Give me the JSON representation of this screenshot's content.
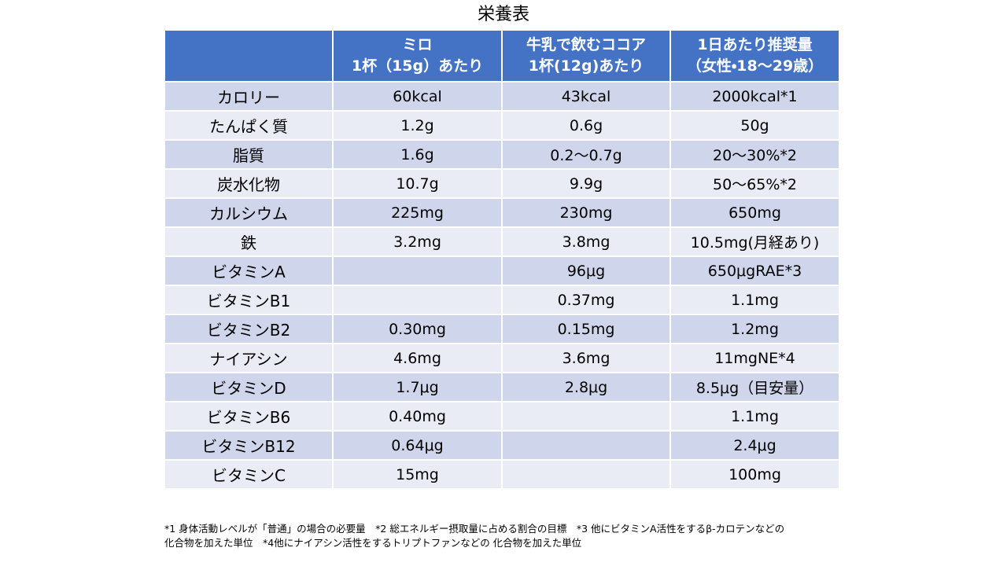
{
  "title": "栄養表",
  "table": {
    "header": [
      [
        "ミロ",
        "1杯（15g）あたり"
      ],
      [
        "牛乳で飲むココア",
        "1杯(12g)あたり"
      ],
      [
        "1日あたり推奨量",
        "（女性・18〜29歳）"
      ]
    ],
    "rows": [
      [
        "カロリー",
        "60kcal",
        "43kcal",
        "2000kcal*1"
      ],
      [
        "たんぱく質",
        "1.2g",
        "0.6g",
        "50g"
      ],
      [
        "脂質",
        "1.6g",
        "0.2〜0.7g",
        "20〜30%*2"
      ],
      [
        "炭水化物",
        "10.7g",
        "9.9g",
        "50〜65%*2"
      ],
      [
        "カルシウム",
        "225mg",
        "230mg",
        "650mg"
      ],
      [
        "鉄",
        "3.2mg",
        "3.8mg",
        "10.5mg(月経あり)"
      ],
      [
        "ビタミンA",
        null,
        "96μg",
        "650μgRAE*3"
      ],
      [
        "ビタミンB1",
        null,
        "0.37mg",
        "1.1mg"
      ],
      [
        "ビタミンB2",
        "0.30mg",
        "0.15mg",
        "1.2mg"
      ],
      [
        "ナイアシン",
        "4.6mg",
        "3.6mg",
        "11mgNE*4"
      ],
      [
        "ビタミンD",
        "1.7μg",
        "2.8μg",
        "8.5μg（目安量）"
      ],
      [
        "ビタミンB6",
        "0.40mg",
        null,
        "1.1mg"
      ],
      [
        "ビタミンB12",
        "0.64μg",
        null,
        "2.4μg"
      ],
      [
        "ビタミンC",
        "15mg",
        null,
        "100mg"
      ]
    ]
  },
  "footnote": [
    "*1 身体活動レベルが「普通」の場合の必要量　*2 総エネルギー摂取量に占める割合の目標　*3 他にビタミンA活性をするβ-カロテンなどの",
    "化合物を加えた単位　*4他にナイアシン活性をするトリプトファンなどの 化合物を加えた単位"
  ]
}
